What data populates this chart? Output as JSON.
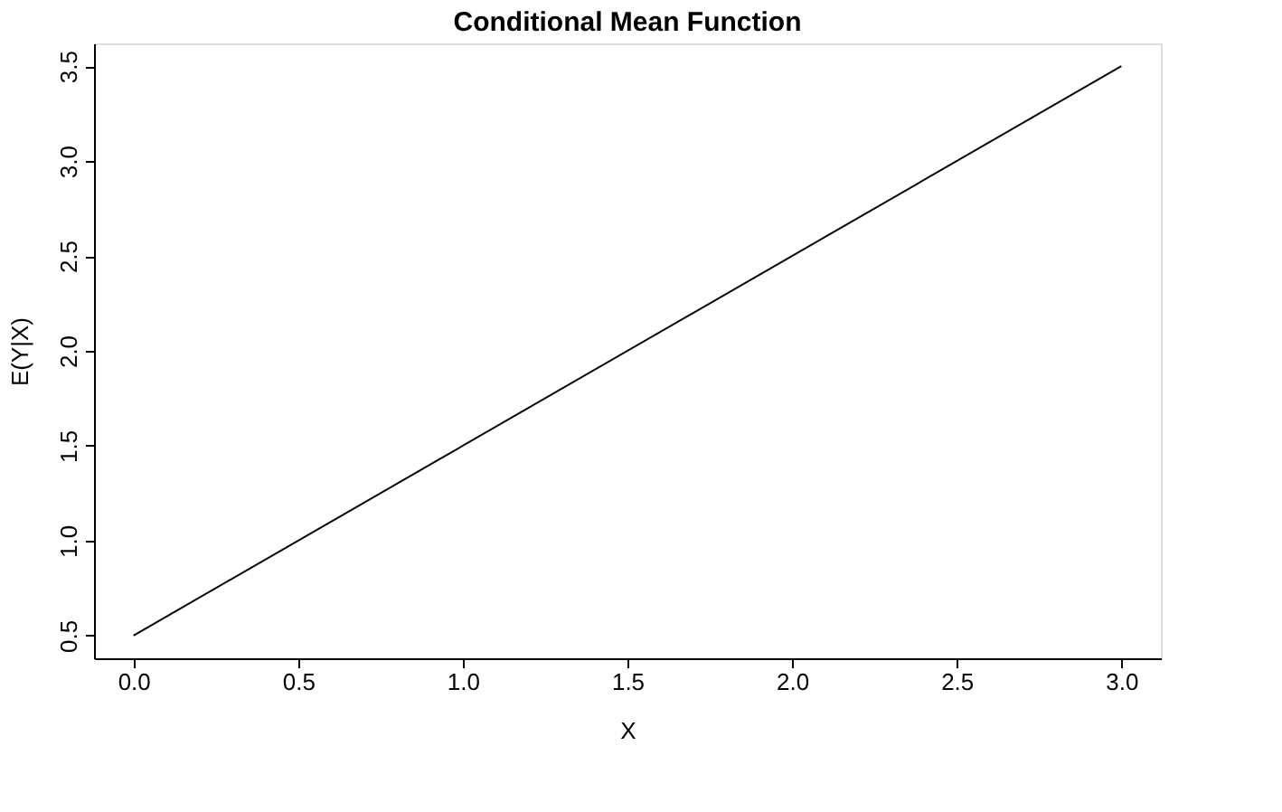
{
  "chart_data": {
    "type": "line",
    "title": "Conditional Mean Function",
    "xlabel": "X",
    "ylabel": "E(Y|X)",
    "x": [
      0,
      3
    ],
    "series": [
      {
        "color": "#000000",
        "values": [
          0.5,
          3.5
        ]
      }
    ],
    "xlim": [
      -0.12,
      3.12
    ],
    "ylim": [
      0.38,
      3.62
    ],
    "xticks": [
      {
        "value": 0,
        "label": "0.0"
      },
      0.5,
      {
        "value": 1,
        "label": "1.0"
      },
      1.5,
      {
        "value": 2,
        "label": "2.0"
      },
      2.5,
      {
        "value": 3,
        "label": "3.0"
      }
    ],
    "yticks": [
      0.5,
      {
        "value": 1,
        "label": "1.0"
      },
      1.5,
      {
        "value": 2,
        "label": "2.0"
      },
      2.5,
      {
        "value": 3,
        "label": "3.0"
      },
      3.5
    ],
    "grid": false,
    "marker": "none",
    "line_style": "solid"
  }
}
